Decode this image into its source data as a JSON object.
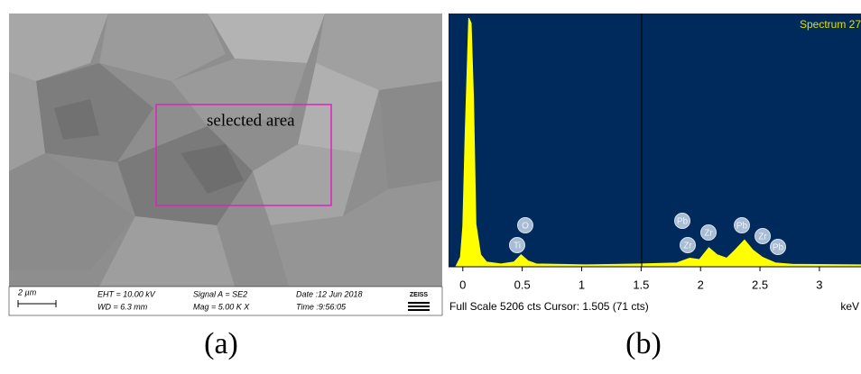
{
  "sem": {
    "scale_bar": "2 µm",
    "eht": "EHT = 10.00 kV",
    "wd": "WD = 6.3 mm",
    "signal": "Signal A = SE2",
    "mag": "Mag =  5.00 K X",
    "date": "Date :12 Jun 2018",
    "time": "Time :9:56:05",
    "logo": "ZEISS",
    "annotation": "selected area"
  },
  "captions": [
    "(a)",
    "(b)"
  ],
  "chart_data": {
    "type": "area",
    "title": "Spectrum 27",
    "x": [
      -0.06,
      -0.02,
      0,
      0.02,
      0.05,
      0.07,
      0.09,
      0.11,
      0.15,
      0.2,
      0.32,
      0.43,
      0.49,
      0.55,
      0.62,
      1.04,
      1.5,
      1.8,
      1.91,
      1.99,
      2.07,
      2.14,
      2.22,
      2.29,
      2.37,
      2.44,
      2.52,
      2.63,
      2.78,
      3.35
    ],
    "values": [
      0,
      200,
      850,
      2800,
      5206,
      5100,
      3500,
      900,
      250,
      100,
      60,
      100,
      250,
      120,
      60,
      40,
      60,
      80,
      180,
      150,
      400,
      250,
      180,
      350,
      560,
      350,
      200,
      80,
      50,
      40
    ],
    "color": "#ffff00",
    "background": "#002a5c",
    "xlim": [
      -0.12,
      3.35
    ],
    "ylim": [
      0,
      5300
    ],
    "xticks": [
      0,
      0.5,
      1,
      1.5,
      2,
      2.5,
      3
    ],
    "x_label": "keV",
    "cursor": 1.505,
    "footer": "Full Scale 5206 cts Cursor: 1.505  (71 cts)",
    "peak_labels": [
      "O",
      "Ti",
      "Pb",
      "Zr",
      "Zr",
      "Pb",
      "Zr",
      "Pb"
    ]
  }
}
